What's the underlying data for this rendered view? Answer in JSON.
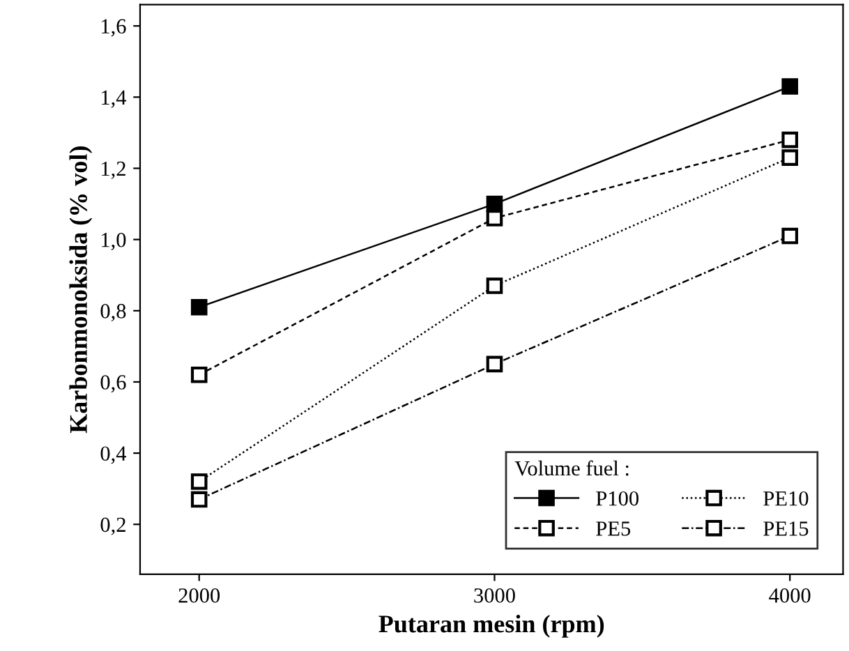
{
  "chart_data": {
    "type": "line",
    "xlabel": "Putaran mesin (rpm)",
    "ylabel": "Karbonmonoksida (% vol)",
    "legend_title": "Volume fuel :",
    "x": [
      2000,
      3000,
      4000
    ],
    "series": [
      {
        "name": "P100",
        "color": "#000000",
        "values": [
          0.81,
          1.1,
          1.43
        ],
        "line_style": "solid"
      },
      {
        "name": "PE5",
        "color": "#000000",
        "values": [
          0.62,
          1.06,
          1.28
        ],
        "line_style": "dashed"
      },
      {
        "name": "PE10",
        "color": "#000000",
        "values": [
          0.32,
          0.87,
          1.23
        ],
        "line_style": "dotted"
      },
      {
        "name": "PE15",
        "color": "#000000",
        "values": [
          0.27,
          0.65,
          1.01
        ],
        "line_style": "dashdot"
      }
    ],
    "marker": "square",
    "xlim": [
      1800,
      4180
    ],
    "ylim": [
      0.06,
      1.66
    ],
    "xticks": [
      2000,
      3000,
      4000
    ],
    "yticks": [
      {
        "value": 0.2,
        "label": "0,2"
      },
      {
        "value": 0.4,
        "label": "0,4"
      },
      {
        "value": 0.6,
        "label": "0,6"
      },
      {
        "value": 0.8,
        "label": "0,8"
      },
      {
        "value": 1.0,
        "label": "1,0"
      },
      {
        "value": 1.2,
        "label": "1,2"
      },
      {
        "value": 1.4,
        "label": "1,4"
      },
      {
        "value": 1.6,
        "label": "1,6"
      }
    ],
    "grid": false,
    "legend": "bottom right"
  }
}
